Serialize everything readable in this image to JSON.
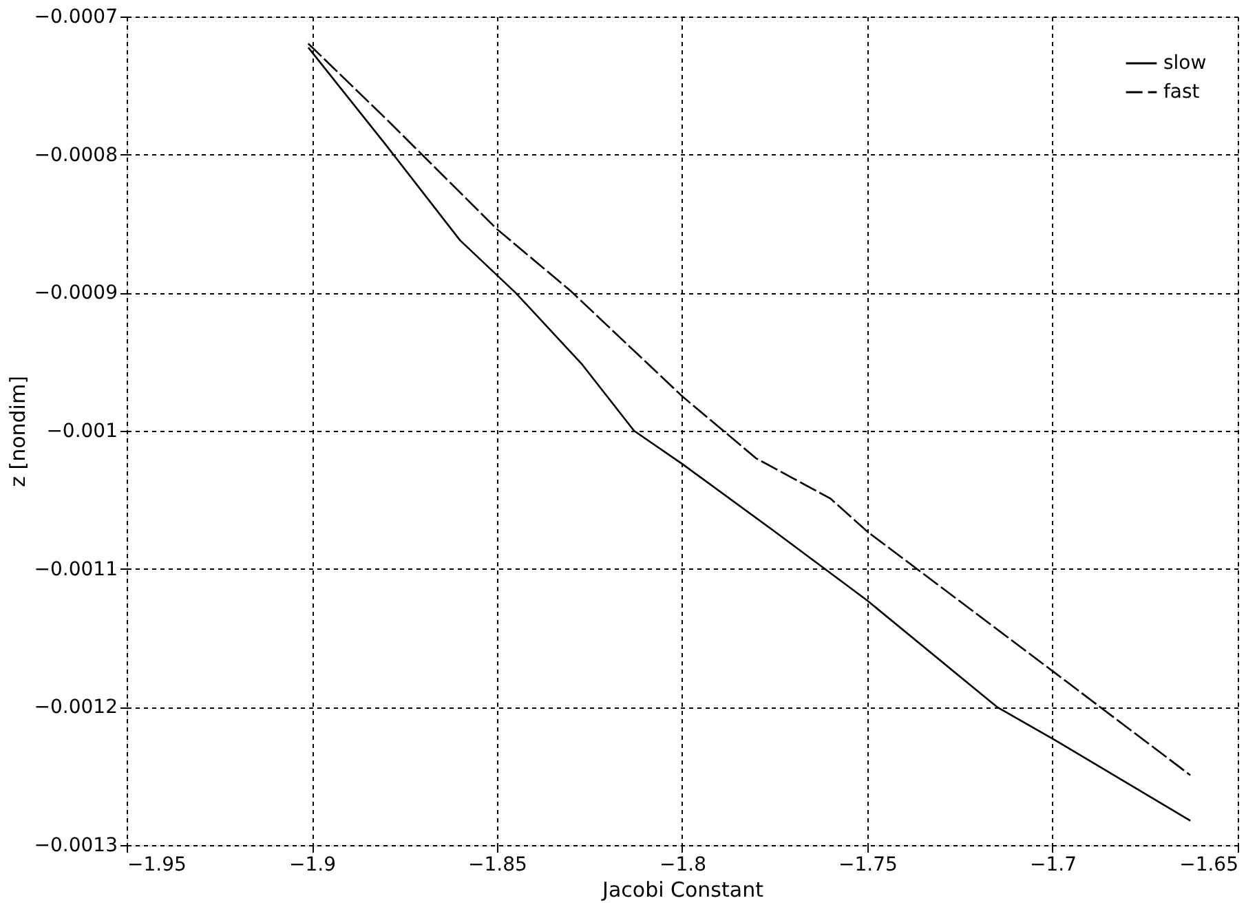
{
  "chart_data": {
    "type": "line",
    "xlabel": "Jacobi Constant",
    "ylabel": "z [nondim]",
    "xlim": [
      -1.95,
      -1.65
    ],
    "xticks": [
      -1.95,
      -1.9,
      -1.85,
      -1.8,
      -1.75,
      -1.7,
      -1.65
    ],
    "ylim": [
      -0.0013,
      -0.0007
    ],
    "yticks": [
      -0.0013,
      -0.0012,
      -0.0011,
      -0.001,
      -0.0009,
      -0.0008,
      -0.0007
    ],
    "grid": true,
    "legend": "top right",
    "marker": "none",
    "series": [
      {
        "name": "slow",
        "color": "#000000",
        "line_style": "solid",
        "x": [
          -1.9008,
          -1.88,
          -1.86,
          -1.845,
          -1.827,
          -1.813,
          -1.8,
          -1.775,
          -1.75,
          -1.715,
          -1.7,
          -1.663
        ],
        "values": [
          -0.000723,
          -0.000793,
          -0.000862,
          -0.0009,
          -0.000952,
          -0.001,
          -0.001024,
          -0.001073,
          -0.001123,
          -0.0012,
          -0.001223,
          -0.001282
        ]
      },
      {
        "name": "fast",
        "color": "#000000",
        "line_style": "dashed",
        "x": [
          -1.9008,
          -1.88,
          -1.85,
          -1.83,
          -1.8,
          -1.78,
          -1.76,
          -1.75,
          -1.7,
          -1.663
        ],
        "values": [
          -0.00072,
          -0.000774,
          -0.000854,
          -0.000899,
          -0.000975,
          -0.00102,
          -0.001049,
          -0.001073,
          -0.001174,
          -0.001249
        ]
      }
    ]
  }
}
